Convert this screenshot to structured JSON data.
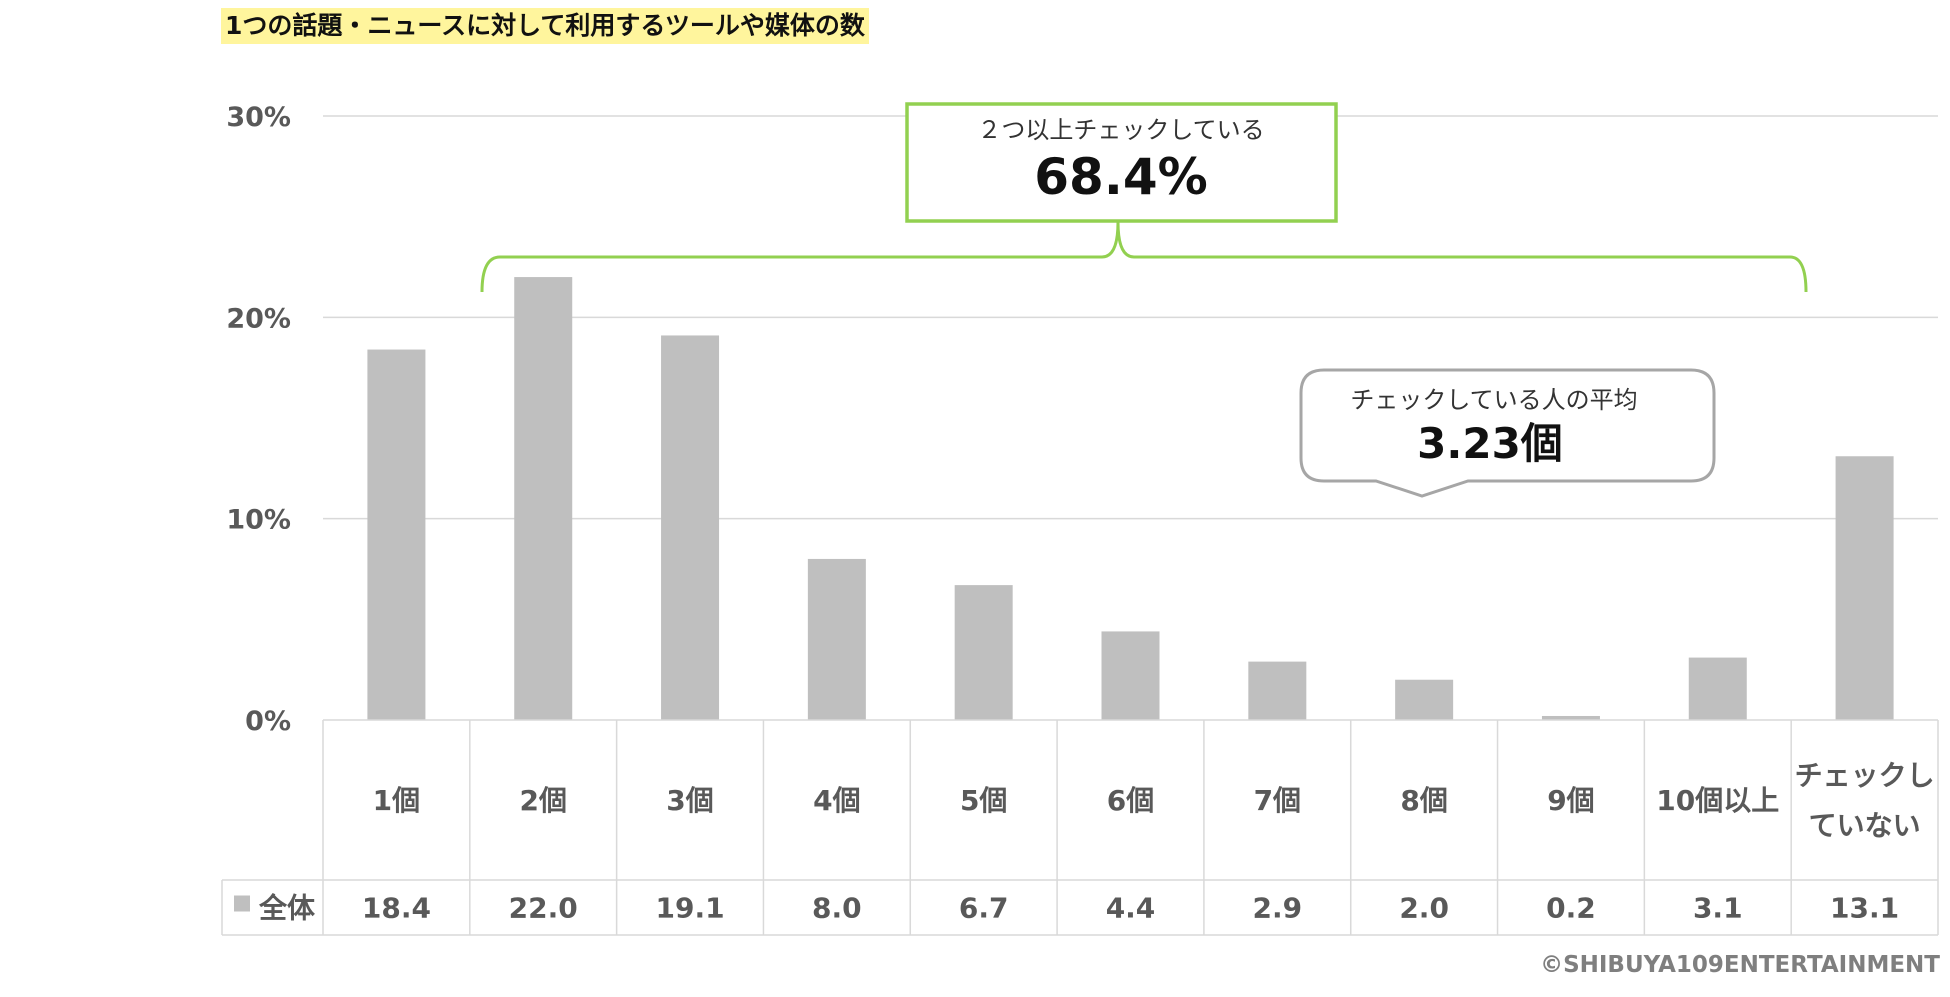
{
  "title": "1つの話題・ニュースに対して利用するツールや媒体の数",
  "chart_data": {
    "type": "bar",
    "categories": [
      "1個",
      "2個",
      "3個",
      "4個",
      "5個",
      "6個",
      "7個",
      "8個",
      "9個",
      "10個以上",
      "チェックしていない"
    ],
    "series": [
      {
        "name": "全体",
        "values": [
          18.4,
          22.0,
          19.1,
          8.0,
          6.7,
          4.4,
          2.9,
          2.0,
          0.2,
          3.1,
          13.1
        ]
      }
    ],
    "value_labels": [
      "18.4",
      "22.0",
      "19.1",
      "8.0",
      "6.7",
      "4.4",
      "2.9",
      "2.0",
      "0.2",
      "3.1",
      "13.1"
    ],
    "ylim": [
      0,
      30
    ],
    "yticks": [
      "0%",
      "10%",
      "20%",
      "30%"
    ],
    "grid": true,
    "legend": "data-table",
    "bar_color": "#bfbfbf",
    "annotations": {
      "two_or_more": {
        "label": "２つ以上チェックしている",
        "value": "68.4%",
        "color": "#92d050"
      },
      "average": {
        "label": "チェックしている人の平均",
        "value": "3.23個"
      }
    }
  },
  "copyright": "©SHIBUYA109ENTERTAINMENT"
}
